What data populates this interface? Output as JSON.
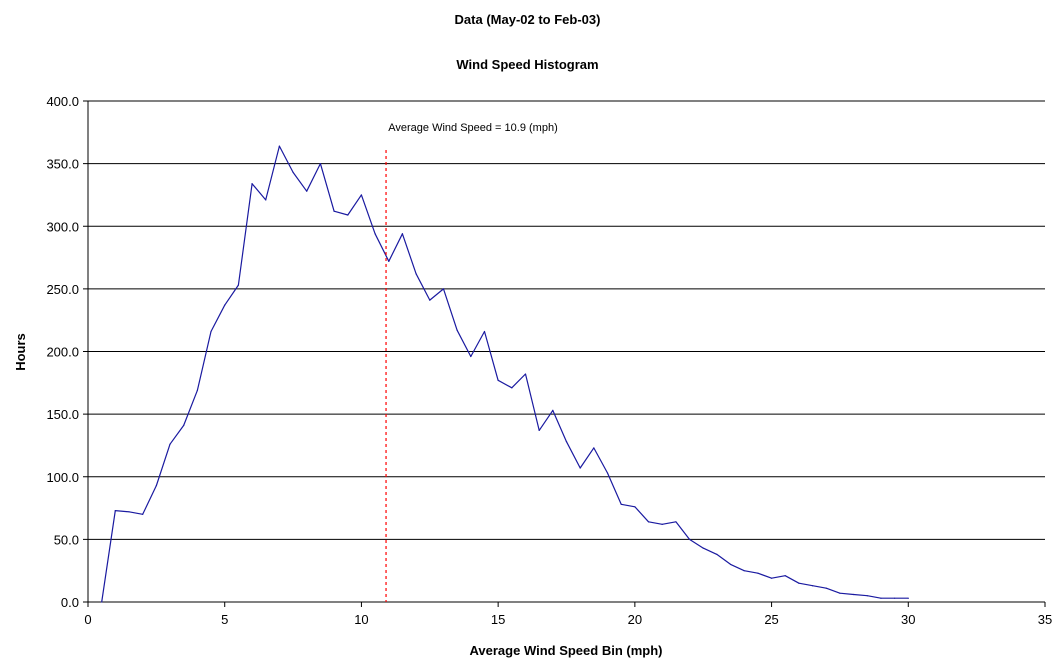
{
  "chart_data": {
    "type": "line",
    "title": "Data (May-02 to Feb-03)",
    "subtitle": "Wind Speed Histogram",
    "xlabel": "Average Wind Speed Bin (mph)",
    "ylabel": "Hours",
    "xlim": [
      0,
      35
    ],
    "ylim": [
      0,
      400
    ],
    "x_ticks": [
      0,
      5,
      10,
      15,
      20,
      25,
      30,
      35
    ],
    "y_ticks": [
      "0.0",
      "50.0",
      "100.0",
      "150.0",
      "200.0",
      "250.0",
      "300.0",
      "350.0",
      "400.0"
    ],
    "grid": "horizontal",
    "series": [
      {
        "color": "#1a1aa0",
        "x": [
          0.5,
          1.0,
          1.5,
          2.0,
          2.5,
          3.0,
          3.5,
          4.0,
          4.5,
          5.0,
          5.5,
          6.0,
          6.5,
          7.0,
          7.5,
          8.0,
          8.5,
          9.0,
          9.5,
          10.0,
          10.5,
          11.0,
          11.5,
          12.0,
          12.5,
          13.0,
          13.5,
          14.0,
          14.5,
          15.0,
          15.5,
          16.0,
          16.5,
          17.0,
          17.5,
          18.0,
          18.5,
          19.0,
          19.5,
          20.0,
          20.5,
          21.0,
          21.5,
          22.0,
          22.5,
          23.0,
          23.5,
          24.0,
          24.5,
          25.0,
          25.5,
          26.0,
          26.5,
          27.0,
          27.5,
          28.0,
          28.5,
          29.0,
          29.5,
          30.0
        ],
        "y": [
          0,
          73,
          72,
          70,
          93,
          126,
          141,
          169,
          216,
          237,
          253,
          334,
          321,
          364,
          343,
          328,
          350,
          312,
          309,
          325,
          294,
          272,
          294,
          262,
          241,
          250,
          217,
          196,
          216,
          177,
          171,
          182,
          137,
          153,
          128,
          107,
          123,
          103,
          78,
          76,
          64,
          62,
          64,
          50,
          43,
          38,
          30,
          25,
          23,
          19,
          21,
          15,
          13,
          11,
          7,
          6,
          5,
          3,
          3,
          3
        ]
      }
    ],
    "reference_line": {
      "x": 10.9,
      "color": "#ff0000",
      "label": "Average Wind Speed = 10.9 (mph)"
    }
  }
}
